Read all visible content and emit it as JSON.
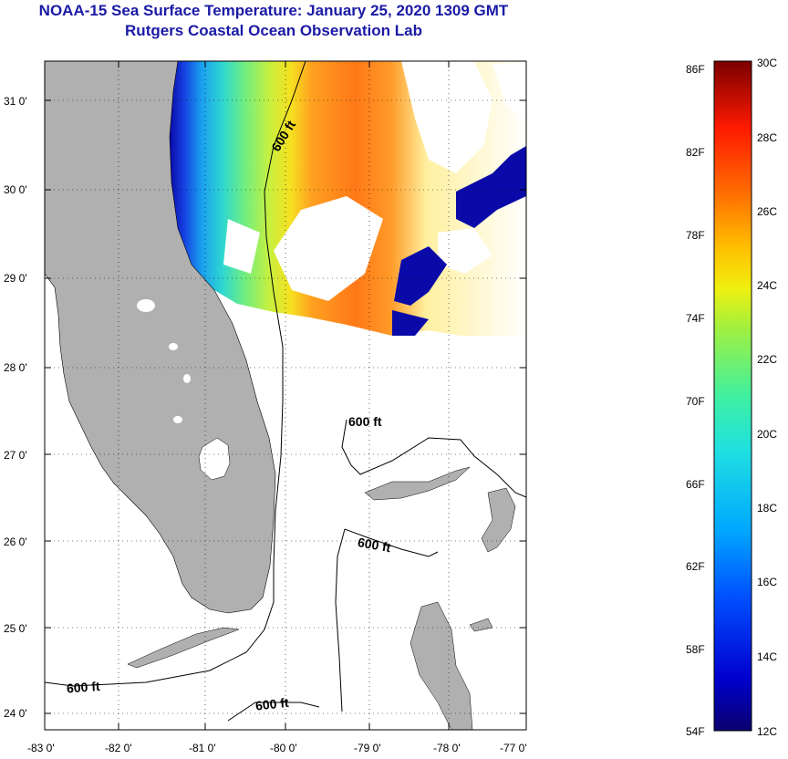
{
  "title": {
    "line1": "NOAA-15 Sea Surface Temperature:  January 25, 2020 1309 GMT",
    "line2": "Rutgers Coastal Ocean Observation Lab"
  },
  "map": {
    "lon_labels": [
      "-83 0'",
      "-82 0'",
      "-81 0'",
      "-80 0'",
      "-79 0'",
      "-78 0'",
      "-77 0'"
    ],
    "lat_labels": [
      "31 0'",
      "30 0'",
      "29 0'",
      "28 0'",
      "27 0'",
      "26 0'",
      "25 0'",
      "24 0'"
    ],
    "isobath_labels": [
      "600 ft",
      "600 ft",
      "600 ft",
      "600 ft",
      "600 ft"
    ],
    "land_color": "#b0b0b0"
  },
  "colorbar": {
    "fahrenheit_labels": [
      "86F",
      "82F",
      "78F",
      "74F",
      "70F",
      "66F",
      "62F",
      "58F",
      "54F"
    ],
    "celsius_labels": [
      "30C",
      "28C",
      "26C",
      "24C",
      "22C",
      "20C",
      "18C",
      "16C",
      "14C",
      "12C"
    ]
  }
}
